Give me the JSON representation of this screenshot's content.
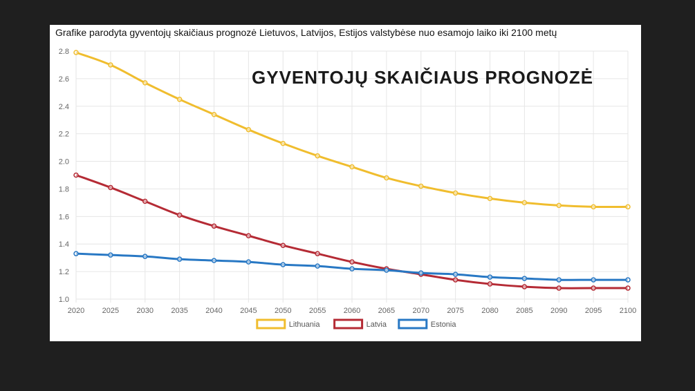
{
  "header": {
    "subtitle": "Grafike parodyta gyventojų skaičiaus prognozė Lietuvos, Latvijos, Estijos valstybėse nuo esamojo laiko iki 2100 metų",
    "overlay_title": "GYVENTOJŲ SKAIČIAUS PROGNOZĖ"
  },
  "chart_data": {
    "type": "line",
    "title": "GYVENTOJŲ SKAIČIAUS PROGNOZĖ",
    "subtitle": "Grafike parodyta gyventojų skaičiaus prognozė Lietuvos, Latvijos, Estijos valstybėse nuo esamojo laiko iki 2100 metų",
    "xlabel": "",
    "ylabel": "",
    "x": [
      "2020",
      "2025",
      "2030",
      "2035",
      "2040",
      "2045",
      "2050",
      "2055",
      "2060",
      "2065",
      "2070",
      "2075",
      "2080",
      "2085",
      "2090",
      "2095",
      "2100"
    ],
    "ylim": [
      1.0,
      2.8
    ],
    "yticks": [
      "1.0",
      "1.2",
      "1.4",
      "1.6",
      "1.8",
      "2.0",
      "2.2",
      "2.4",
      "2.6",
      "2.8"
    ],
    "grid": true,
    "legend_position": "bottom",
    "series": [
      {
        "name": "Lithuania",
        "color": "#f0bd2e",
        "values": [
          2.79,
          2.7,
          2.57,
          2.45,
          2.34,
          2.23,
          2.13,
          2.04,
          1.96,
          1.88,
          1.82,
          1.77,
          1.73,
          1.7,
          1.68,
          1.67,
          1.67
        ]
      },
      {
        "name": "Latvia",
        "color": "#b52b35",
        "values": [
          1.9,
          1.81,
          1.71,
          1.61,
          1.53,
          1.46,
          1.39,
          1.33,
          1.27,
          1.22,
          1.18,
          1.14,
          1.11,
          1.09,
          1.08,
          1.08,
          1.08
        ]
      },
      {
        "name": "Estonia",
        "color": "#2878c4",
        "values": [
          1.33,
          1.32,
          1.31,
          1.29,
          1.28,
          1.27,
          1.25,
          1.24,
          1.22,
          1.21,
          1.19,
          1.18,
          1.16,
          1.15,
          1.14,
          1.14,
          1.14
        ]
      }
    ]
  }
}
